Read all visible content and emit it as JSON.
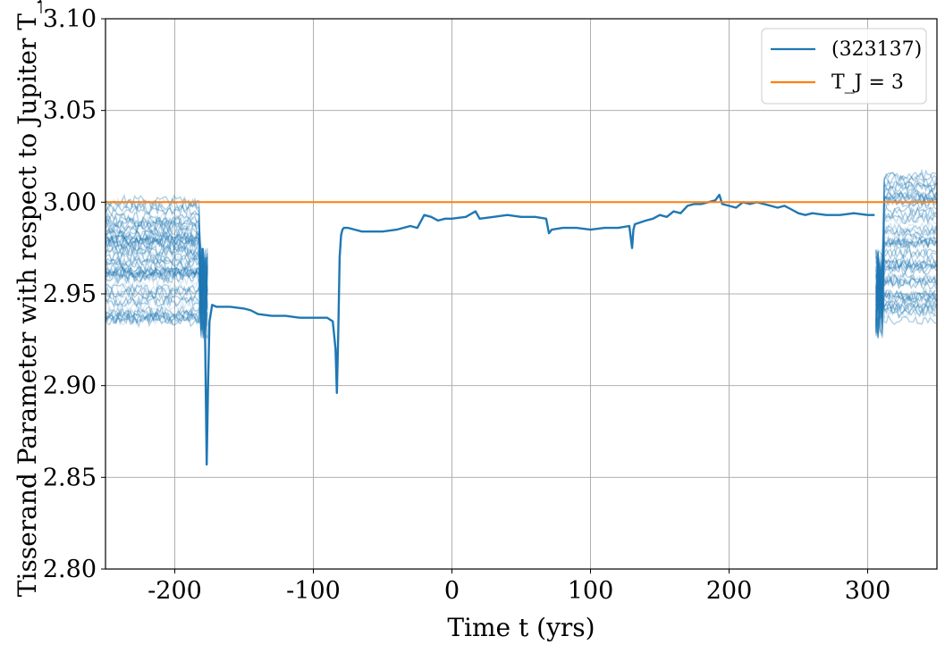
{
  "chart_data": {
    "type": "line",
    "xlabel": "Time t (yrs)",
    "ylabel": "Tisserand Parameter with respect to Jupiter T_J",
    "xlim": [
      -250,
      350
    ],
    "ylim": [
      2.8,
      3.1
    ],
    "xticks": [
      -200,
      -100,
      0,
      100,
      200,
      300
    ],
    "xtick_labels": [
      "-200",
      "-100",
      "0",
      "100",
      "200",
      "300"
    ],
    "yticks": [
      2.8,
      2.85,
      2.9,
      2.95,
      3.0,
      3.05,
      3.1
    ],
    "ytick_labels": [
      "2.80",
      "2.85",
      "2.90",
      "2.95",
      "3.00",
      "3.05",
      "3.10"
    ],
    "grid": true,
    "legend_position": "top-right",
    "series": [
      {
        "name": "(323137)",
        "color": "#1f77b4",
        "x": [
          -180,
          -179,
          -178,
          -177,
          -176,
          -175,
          -173,
          -170,
          -160,
          -150,
          -145,
          -140,
          -130,
          -120,
          -110,
          -100,
          -90,
          -86,
          -84,
          -83,
          -82,
          -81,
          -80,
          -79,
          -78,
          -75,
          -70,
          -65,
          -60,
          -50,
          -40,
          -30,
          -25,
          -20,
          -15,
          -10,
          -5,
          0,
          10,
          17,
          20,
          30,
          40,
          50,
          60,
          68,
          70,
          72,
          80,
          90,
          100,
          110,
          120,
          128,
          130,
          131,
          132,
          140,
          145,
          150,
          155,
          160,
          165,
          170,
          175,
          180,
          185,
          190,
          193,
          195,
          200,
          205,
          210,
          215,
          220,
          225,
          230,
          235,
          240,
          245,
          250,
          255,
          260,
          270,
          280,
          290,
          300,
          305
        ],
        "y": [
          2.975,
          2.96,
          2.92,
          2.857,
          2.9,
          2.935,
          2.944,
          2.943,
          2.943,
          2.942,
          2.941,
          2.939,
          2.938,
          2.938,
          2.937,
          2.937,
          2.937,
          2.935,
          2.92,
          2.896,
          2.93,
          2.97,
          2.982,
          2.985,
          2.986,
          2.986,
          2.985,
          2.984,
          2.984,
          2.984,
          2.985,
          2.987,
          2.986,
          2.993,
          2.992,
          2.99,
          2.991,
          2.991,
          2.992,
          2.995,
          2.991,
          2.992,
          2.993,
          2.992,
          2.992,
          2.991,
          2.983,
          2.985,
          2.986,
          2.986,
          2.985,
          2.986,
          2.986,
          2.987,
          2.975,
          2.985,
          2.988,
          2.99,
          2.991,
          2.993,
          2.992,
          2.995,
          2.994,
          2.998,
          2.999,
          2.999,
          3.0,
          3.001,
          3.004,
          2.999,
          2.998,
          2.997,
          3.0,
          2.999,
          3.0,
          2.999,
          2.998,
          2.997,
          2.998,
          2.996,
          2.994,
          2.993,
          2.994,
          2.993,
          2.993,
          2.994,
          2.993,
          2.993
        ]
      },
      {
        "name": "T_J = 3",
        "color": "#ff7f0e",
        "x": [
          -250,
          350
        ],
        "y": [
          3.0,
          3.0
        ]
      }
    ]
  }
}
